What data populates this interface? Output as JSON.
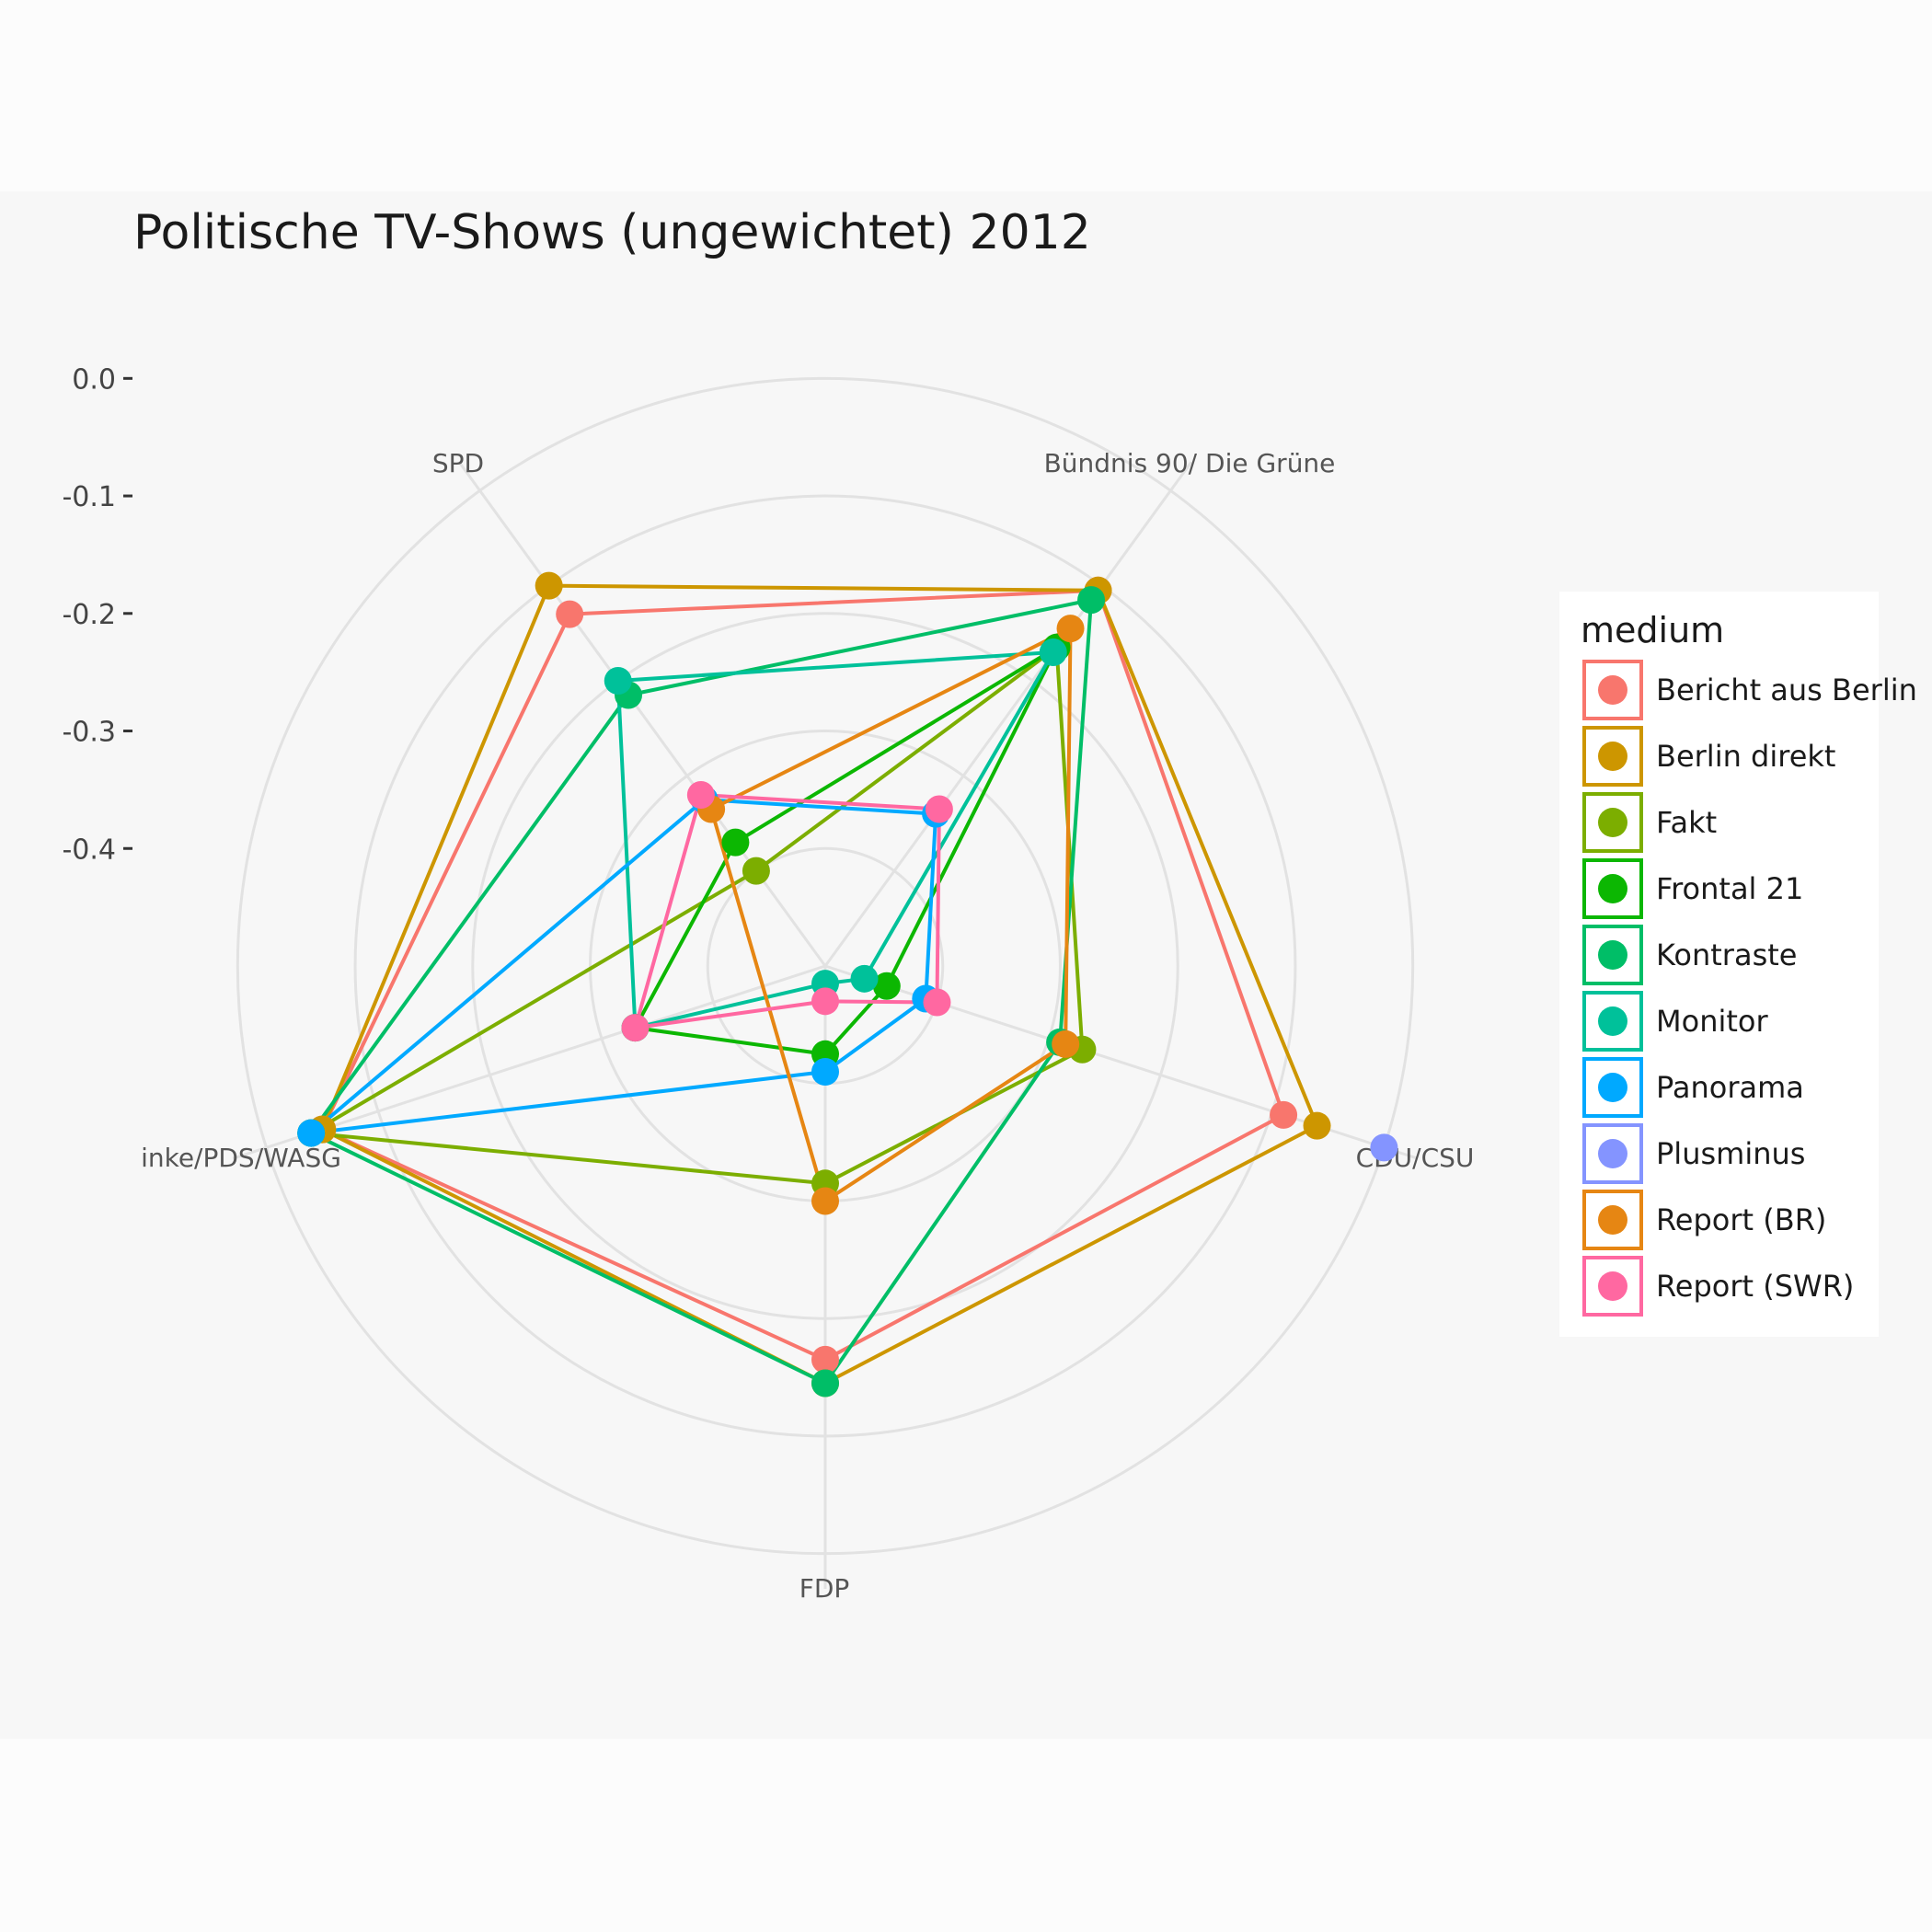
{
  "chart_data": {
    "type": "radar",
    "title": "Politische TV-Shows (ungewichtet) 2012",
    "axes": [
      "SPD",
      "Bündnis 90/ Die Grüne",
      "CDU/CSU",
      "FDP",
      "Linke/PDS/WASG"
    ],
    "axis_labels_shown": [
      "SPD",
      "Bündnis 90/ Die Grüne",
      "CDU/CSU",
      "FDP",
      "inke/PDS/WASG"
    ],
    "rmin": -0.5,
    "rmax": 0.03,
    "ticks": [
      0.0,
      -0.1,
      -0.2,
      -0.3,
      -0.4
    ],
    "tick_labels": [
      "0.0",
      "-0.1",
      "-0.2",
      "-0.3",
      "-0.4"
    ],
    "grid_values": [
      -0.4,
      -0.3,
      -0.2,
      -0.1,
      0.0
    ],
    "legend": {
      "title": "medium",
      "placement": "right"
    },
    "series": [
      {
        "name": "Bericht aus Berlin",
        "color": "#F8766D",
        "values": [
          -0.13,
          -0.105,
          -0.09,
          -0.165,
          -0.05
        ]
      },
      {
        "name": "Berlin direkt",
        "color": "#CD9600",
        "values": [
          -0.1,
          -0.105,
          -0.06,
          -0.145,
          -0.05
        ]
      },
      {
        "name": "Fakt",
        "color": "#7CAE00",
        "values": [
          -0.4,
          -0.165,
          -0.27,
          -0.315,
          -0.04
        ]
      },
      {
        "name": "Frontal 21",
        "color": "#0CB702",
        "values": [
          -0.37,
          -0.165,
          -0.445,
          -0.425,
          -0.33
        ]
      },
      {
        "name": "Kontraste",
        "color": "#00BE67",
        "values": [
          -0.215,
          -0.115,
          -0.29,
          -0.145,
          -0.04
        ]
      },
      {
        "name": "Monitor",
        "color": "#00C19A",
        "values": [
          -0.2,
          -0.17,
          -0.465,
          -0.485,
          -0.33
        ]
      },
      {
        "name": "Panorama",
        "color": "#00A9FF",
        "values": [
          -0.325,
          -0.34,
          -0.41,
          -0.41,
          -0.04
        ]
      },
      {
        "name": "Plusminus",
        "color": "#8494FF",
        "values": [
          null,
          null,
          0.0,
          null,
          null
        ]
      },
      {
        "name": "Report (BR)",
        "color": "#E68613",
        "values": [
          -0.335,
          -0.145,
          -0.285,
          -0.3,
          null
        ]
      },
      {
        "name": "Report (SWR)",
        "color": "#FF68A1",
        "values": [
          -0.32,
          -0.335,
          -0.4,
          -0.47,
          -0.33
        ]
      }
    ]
  }
}
